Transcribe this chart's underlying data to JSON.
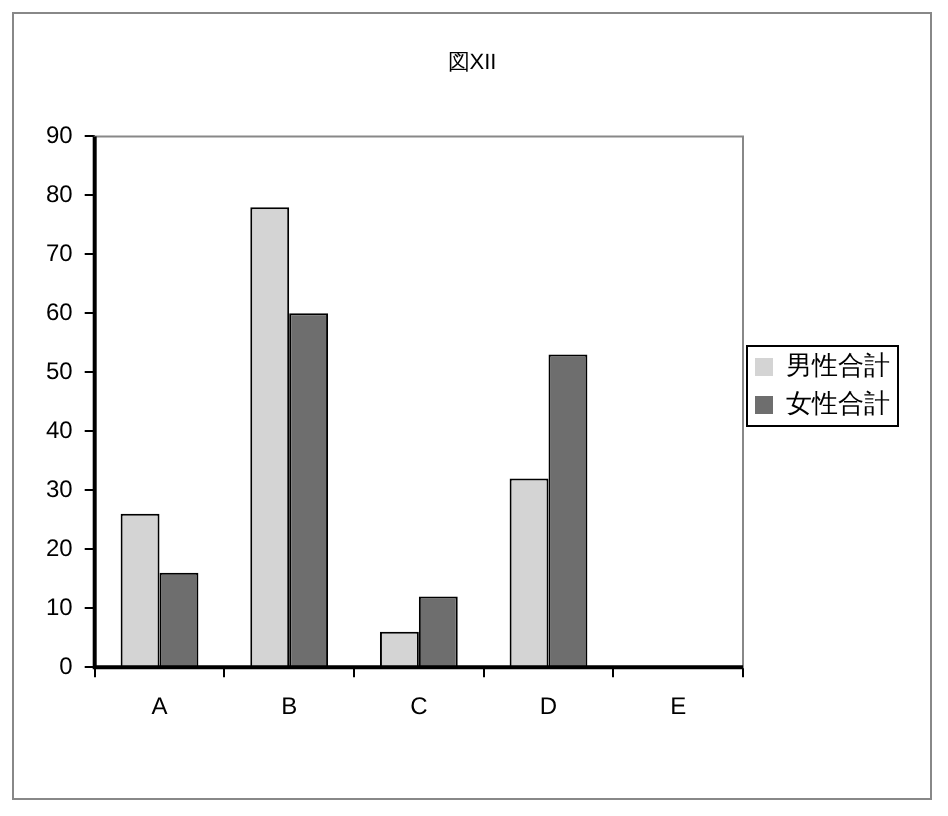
{
  "chart_data": {
    "type": "bar",
    "title": "図XII",
    "categories": [
      "A",
      "B",
      "C",
      "D",
      "E"
    ],
    "series": [
      {
        "name": "男性合計",
        "color": "#d4d4d4",
        "values": [
          26,
          78,
          6,
          32,
          null
        ]
      },
      {
        "name": "女性合計",
        "color": "#6e6e6e",
        "values": [
          16,
          60,
          12,
          53,
          null
        ]
      }
    ],
    "ylim": [
      0,
      90
    ],
    "yticks": [
      0,
      10,
      20,
      30,
      40,
      50,
      60,
      70,
      80,
      90
    ],
    "grid": false,
    "legend": "right"
  }
}
